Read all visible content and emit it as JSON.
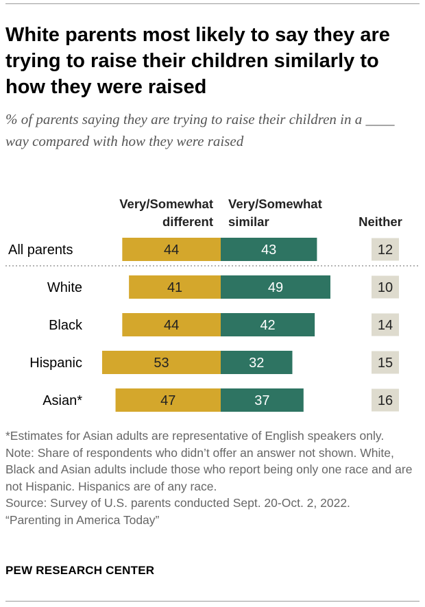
{
  "title": "White parents most likely to say they are trying to raise their children similarly to how they were raised",
  "subtitle": "% of parents saying they are trying to raise their children in a ____ way compared with how they were raised",
  "chart_data": {
    "type": "bar",
    "orientation": "horizontal-diverging",
    "categories": [
      "All parents",
      "White",
      "Black",
      "Hispanic",
      "Asian*"
    ],
    "series": [
      {
        "name": "Very/Somewhat different",
        "values": [
          44,
          41,
          44,
          53,
          47
        ],
        "color": "#D4A72C"
      },
      {
        "name": "Very/Somewhat similar",
        "values": [
          43,
          49,
          42,
          32,
          37
        ],
        "color": "#2E7462"
      },
      {
        "name": "Neither",
        "values": [
          12,
          10,
          14,
          15,
          16
        ],
        "color": "#DEDBCE"
      }
    ],
    "headers": {
      "different": [
        "Very/Somewhat",
        "different"
      ],
      "similar": [
        "Very/Somewhat",
        "similar"
      ],
      "neither": [
        "Neither"
      ]
    }
  },
  "notes": [
    "*Estimates for Asian adults are representative of English speakers only.",
    "Note: Share of respondents who didn’t offer an answer not shown. White, Black and Asian adults include those who report being only one race and are not Hispanic. Hispanics are of any race.",
    "Source: Survey of U.S. parents conducted Sept. 20-Oct. 2, 2022.",
    "“Parenting in America Today”"
  ],
  "brand": "PEW RESEARCH CENTER"
}
